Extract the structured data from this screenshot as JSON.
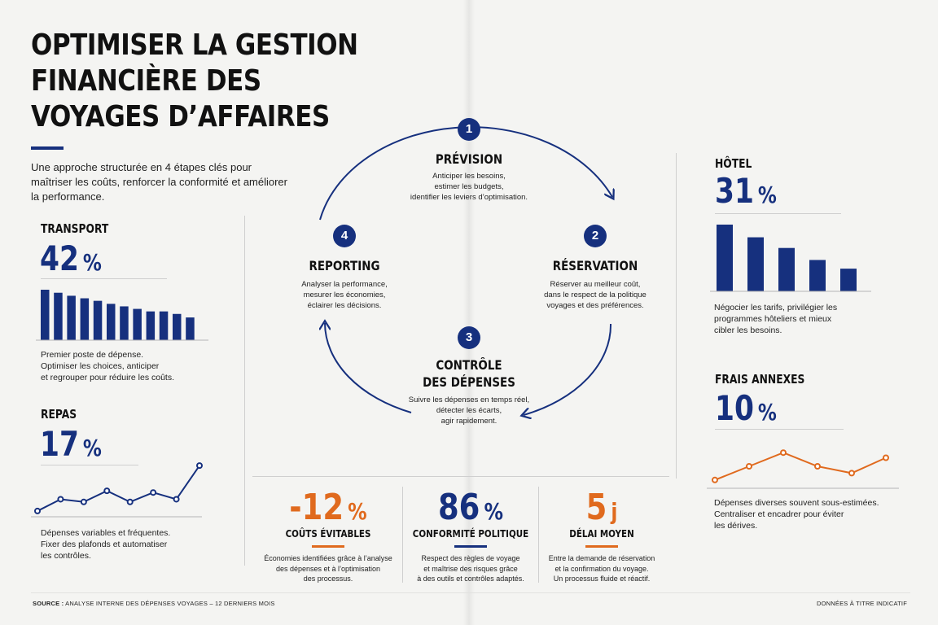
{
  "colors": {
    "navy": "#16307e",
    "orange": "#e06a1e"
  },
  "header": {
    "title_lines": [
      "OPTIMISER LA GESTION",
      "FINANCIÈRE DES",
      "VOYAGES D’AFFAIRES"
    ],
    "intro": "Une approche structurée en 4 étapes clés pour maîtriser les coûts, renforcer la conformité et améliorer la performance."
  },
  "left": {
    "transport": {
      "label": "TRANSPORT",
      "value": "42",
      "unit": "%",
      "desc_lines": [
        "Premier poste de dépense.",
        "Optimiser les choices, anticiper",
        "et regrouper pour réduire les coûts."
      ]
    },
    "repas": {
      "label": "REPAS",
      "value": "17",
      "unit": "%",
      "desc_lines": [
        "Dépenses variables et fréquentes.",
        "Fixer des plafonds et automatiser",
        "les contrôles."
      ]
    }
  },
  "cycle": {
    "steps": [
      {
        "num": "1",
        "title_lines": [
          "PRÉVISION"
        ],
        "text_lines": [
          "Anticiper les besoins,",
          "estimer les budgets,",
          "identifier les leviers d’optimisation."
        ]
      },
      {
        "num": "2",
        "title_lines": [
          "RÉSERVATION"
        ],
        "text_lines": [
          "Réserver au meilleur coût,",
          "dans le respect de la politique",
          "voyages et des préférences."
        ]
      },
      {
        "num": "3",
        "title_lines": [
          "CONTRÔLE",
          "DES DÉPENSES"
        ],
        "text_lines": [
          "Suivre les dépenses en temps réel,",
          "détecter les écarts,",
          "agir rapidement."
        ]
      },
      {
        "num": "4",
        "title_lines": [
          "REPORTING"
        ],
        "text_lines": [
          "Analyser la performance,",
          "mesurer les économies,",
          "éclairer les décisions."
        ]
      }
    ]
  },
  "kpis": [
    {
      "value": "-12",
      "unit": "%",
      "color": "#e06a1e",
      "label": "COÛTS ÉVITABLES",
      "text_lines": [
        "Économies identifiées grâce à l’analyse",
        "des dépenses et à l’optimisation",
        "des processus."
      ]
    },
    {
      "value": "86",
      "unit": "%",
      "color": "#16307e",
      "label": "CONFORMITÉ POLITIQUE",
      "text_lines": [
        "Respect des règles de voyage",
        "et maîtrise des risques grâce",
        "à des outils et contrôles adaptés."
      ]
    },
    {
      "value": "5",
      "unit": "j",
      "color": "#e06a1e",
      "label": "DÉLAI MOYEN",
      "text_lines": [
        "Entre la demande de réservation",
        "et la confirmation du voyage.",
        "Un processus fluide et réactif."
      ]
    }
  ],
  "right": {
    "hotel": {
      "label": "HÔTEL",
      "value": "31",
      "unit": "%",
      "desc_lines": [
        "Négocier les tarifs, privilégier les",
        "programmes hôteliers et mieux",
        "cibler les besoins."
      ]
    },
    "frais": {
      "label": "FRAIS ANNEXES",
      "value": "10",
      "unit": "%",
      "desc_lines": [
        "Dépenses diverses souvent sous-estimées.",
        "Centraliser et encadrer pour éviter",
        "les dérives."
      ]
    }
  },
  "footer": {
    "source_label": "SOURCE :",
    "source_text": "ANALYSE INTERNE DES DÉPENSES VOYAGES – 12 DERNIERS MOIS",
    "note": "DONNÉES À TITRE INDICATIF"
  },
  "chart_data": [
    {
      "type": "bar",
      "id": "transport",
      "values": [
        100,
        94,
        88,
        83,
        78,
        72,
        67,
        62,
        57,
        57,
        52,
        45
      ],
      "ylim": [
        0,
        100
      ],
      "color": "#16307e"
    },
    {
      "type": "line",
      "id": "repas",
      "values": [
        0.5,
        4,
        3.2,
        6.5,
        3.2,
        6,
        4,
        14
      ],
      "ylim": [
        0,
        15
      ],
      "color": "#16307e"
    },
    {
      "type": "bar",
      "id": "hotel",
      "values": [
        100,
        81,
        65,
        47,
        34
      ],
      "ylim": [
        0,
        100
      ],
      "color": "#16307e"
    },
    {
      "type": "line",
      "id": "frais",
      "values": [
        1,
        5,
        9,
        5,
        3,
        7.5
      ],
      "ylim": [
        0,
        10
      ],
      "color": "#e06a1e"
    }
  ]
}
